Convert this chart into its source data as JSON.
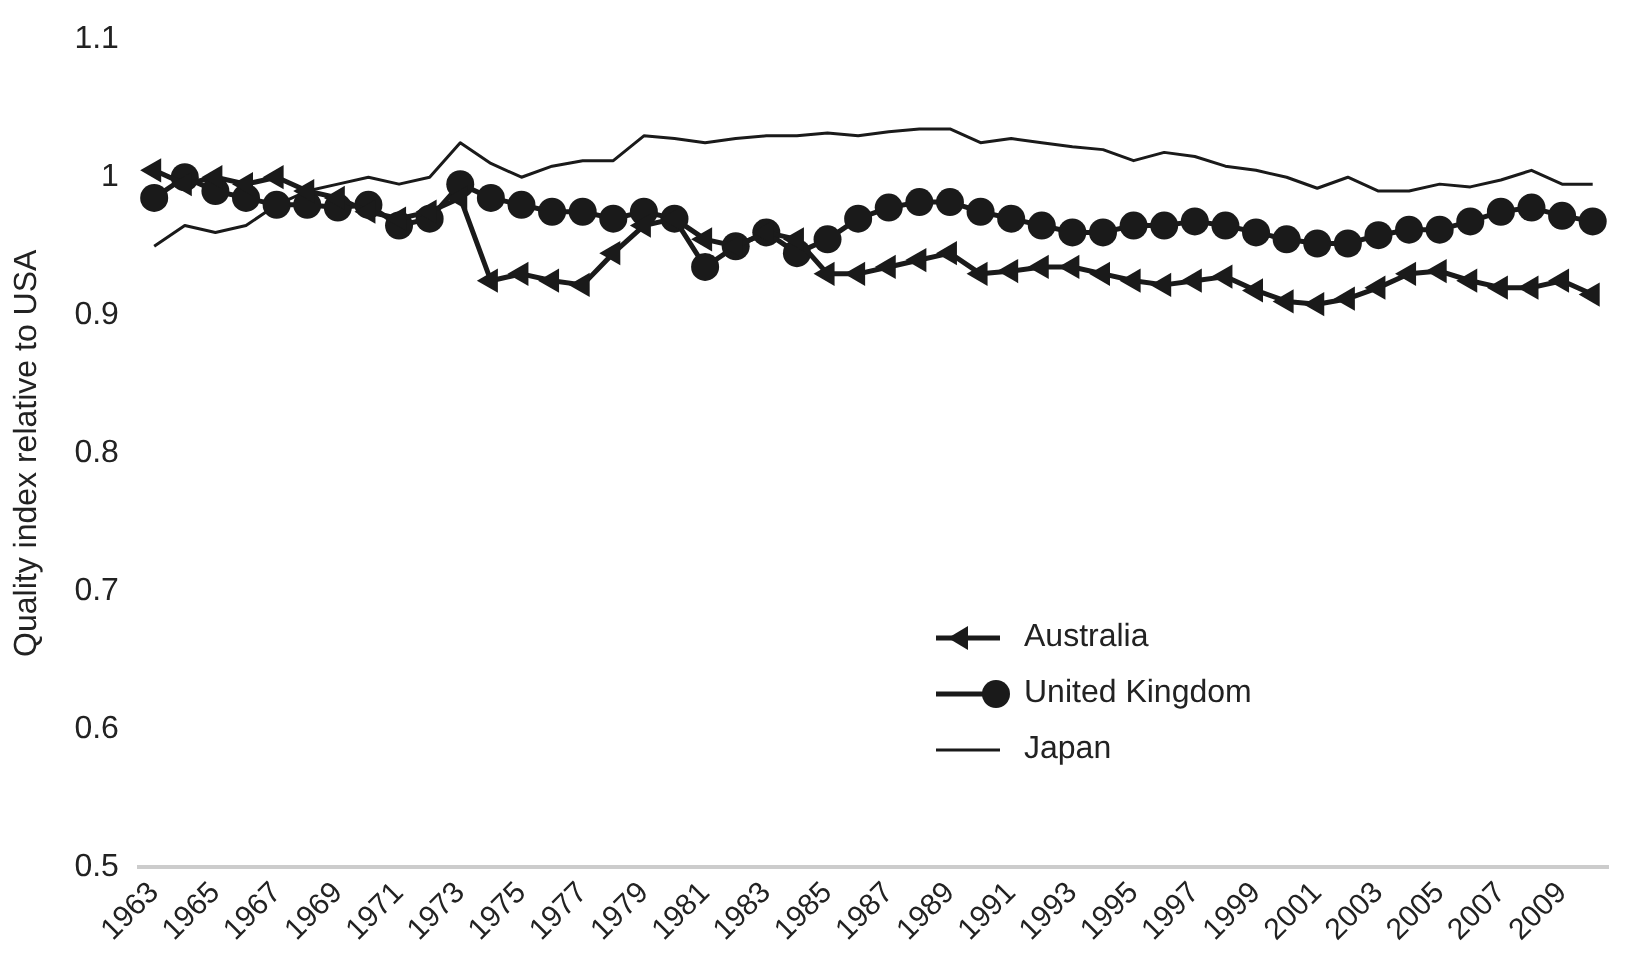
{
  "chart_data": {
    "type": "line",
    "ylabel": "Quality index relative to USA",
    "categories": [
      "1963",
      null,
      "1965",
      null,
      "1967",
      null,
      "1969",
      null,
      "1971",
      null,
      "1973",
      null,
      "1975",
      null,
      "1977",
      null,
      "1979",
      null,
      "1981",
      null,
      "1983",
      null,
      "1985",
      null,
      "1987",
      null,
      "1989",
      null,
      "1991",
      null,
      "1993",
      null,
      "1995",
      null,
      "1997",
      null,
      "1999",
      null,
      "2001",
      null,
      "2003",
      null,
      "2005",
      null,
      "2007",
      null,
      "2009",
      null
    ],
    "series": [
      {
        "name": "Australia",
        "color": "#1a1a1a",
        "marker": "triangle",
        "values": [
          1.005,
          0.995,
          1.0,
          0.995,
          1.0,
          0.99,
          0.985,
          0.975,
          0.97,
          0.975,
          0.985,
          0.925,
          0.93,
          0.925,
          0.922,
          0.945,
          0.965,
          0.97,
          0.955,
          0.95,
          0.96,
          0.955,
          0.93,
          0.93,
          0.935,
          0.94,
          0.945,
          0.93,
          0.932,
          0.935,
          0.935,
          0.93,
          0.925,
          0.922,
          0.925,
          0.928,
          0.918,
          0.91,
          0.908,
          0.912,
          0.92,
          0.93,
          0.932,
          0.925,
          0.92,
          0.92,
          0.925,
          0.915
        ]
      },
      {
        "name": "United Kingdom",
        "color": "#1a1a1a",
        "marker": "circle",
        "values": [
          0.985,
          1.0,
          0.99,
          0.985,
          0.98,
          0.98,
          0.978,
          0.98,
          0.965,
          0.97,
          0.995,
          0.985,
          0.98,
          0.975,
          0.975,
          0.97,
          0.975,
          0.97,
          0.935,
          0.95,
          0.96,
          0.945,
          0.955,
          0.97,
          0.978,
          0.982,
          0.982,
          0.975,
          0.97,
          0.965,
          0.96,
          0.96,
          0.965,
          0.965,
          0.968,
          0.965,
          0.96,
          0.955,
          0.952,
          0.952,
          0.958,
          0.962,
          0.962,
          0.968,
          0.975,
          0.978,
          0.972,
          0.968
        ]
      },
      {
        "name": "Japan",
        "color": "#1a1a1a",
        "marker": "none",
        "values": [
          0.95,
          0.965,
          0.96,
          0.965,
          0.98,
          0.99,
          0.995,
          1.0,
          0.995,
          1.0,
          1.025,
          1.01,
          1.0,
          1.008,
          1.012,
          1.012,
          1.03,
          1.028,
          1.025,
          1.028,
          1.03,
          1.03,
          1.032,
          1.03,
          1.033,
          1.035,
          1.035,
          1.025,
          1.028,
          1.025,
          1.022,
          1.02,
          1.012,
          1.018,
          1.015,
          1.008,
          1.005,
          1.0,
          0.992,
          1.0,
          0.99,
          0.99,
          0.995,
          0.993,
          0.998,
          1.005,
          0.995,
          0.995
        ]
      }
    ],
    "ylim": [
      0.5,
      1.1
    ],
    "yticks": [
      0.5,
      0.6,
      0.7,
      0.8,
      0.9,
      1,
      1.1
    ],
    "grid": false,
    "legend": "bottom right"
  }
}
